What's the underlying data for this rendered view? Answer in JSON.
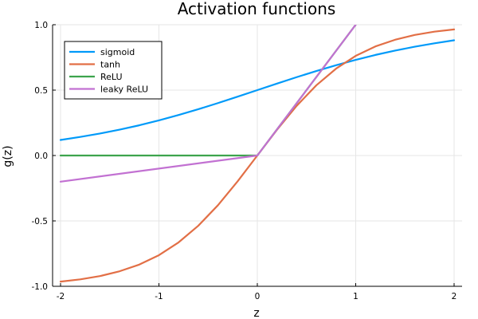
{
  "chart_data": {
    "type": "line",
    "title": "Activation functions",
    "xlabel": "z",
    "ylabel": "g(z)",
    "xlim": [
      -2,
      2
    ],
    "ylim": [
      -1.0,
      1.0
    ],
    "xticks": [
      -2,
      -1,
      0,
      1,
      2
    ],
    "xtick_labels": [
      "-2",
      "-1",
      "0",
      "1",
      "2"
    ],
    "yticks": [
      -1.0,
      -0.5,
      0.0,
      0.5,
      1.0
    ],
    "ytick_labels": [
      "-1.0",
      "-0.5",
      "0.0",
      "0.5",
      "1.0"
    ],
    "grid": true,
    "legend_position": "top-left",
    "series": [
      {
        "name": "sigmoid",
        "color": "#009af9",
        "x": [
          -2,
          -1.8,
          -1.6,
          -1.4,
          -1.2,
          -1,
          -0.8,
          -0.6,
          -0.4,
          -0.2,
          0,
          0.2,
          0.4,
          0.6,
          0.8,
          1,
          1.2,
          1.4,
          1.6,
          1.8,
          2
        ],
        "y": [
          0.119,
          0.142,
          0.168,
          0.198,
          0.231,
          0.269,
          0.31,
          0.354,
          0.401,
          0.45,
          0.5,
          0.55,
          0.599,
          0.646,
          0.69,
          0.731,
          0.769,
          0.802,
          0.832,
          0.858,
          0.881
        ]
      },
      {
        "name": "tanh",
        "color": "#e26f46",
        "x": [
          -2,
          -1.8,
          -1.6,
          -1.4,
          -1.2,
          -1,
          -0.8,
          -0.6,
          -0.4,
          -0.2,
          0,
          0.2,
          0.4,
          0.6,
          0.8,
          1,
          1.2,
          1.4,
          1.6,
          1.8,
          2
        ],
        "y": [
          -0.964,
          -0.947,
          -0.922,
          -0.885,
          -0.834,
          -0.762,
          -0.664,
          -0.537,
          -0.38,
          -0.197,
          0.0,
          0.197,
          0.38,
          0.537,
          0.664,
          0.762,
          0.834,
          0.885,
          0.922,
          0.947,
          0.964
        ]
      },
      {
        "name": "ReLU",
        "color": "#3da44d",
        "x": [
          -2,
          0,
          1
        ],
        "y": [
          0.0,
          0.0,
          1.0
        ]
      },
      {
        "name": "leaky ReLU",
        "color": "#c271d2",
        "x": [
          -2,
          0,
          1
        ],
        "y": [
          -0.2,
          0.0,
          1.0
        ]
      }
    ]
  }
}
